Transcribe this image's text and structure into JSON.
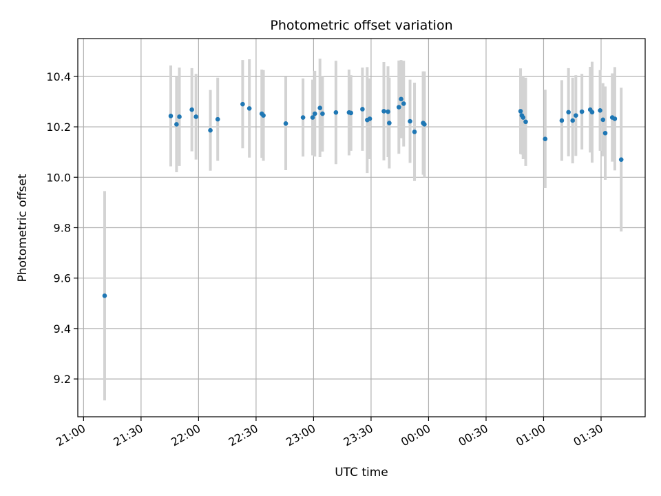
{
  "chart_data": {
    "type": "scatter",
    "title": "Photometric offset variation",
    "xlabel": "UTC time",
    "ylabel": "Photometric offset",
    "grid": true,
    "xlim": [
      "20:57",
      "01:53"
    ],
    "ylim": [
      9.05,
      10.55
    ],
    "xticks": [
      "21:00",
      "21:30",
      "22:00",
      "22:30",
      "23:00",
      "23:30",
      "00:00",
      "00:30",
      "01:00",
      "01:30"
    ],
    "yticks": [
      "9.2",
      "9.4",
      "9.6",
      "9.8",
      "10.0",
      "10.2",
      "10.4"
    ],
    "point_color": "#1f77b4",
    "errorbar_color": "#d3d3d3",
    "points": [
      {
        "t": "21:11:00",
        "y": 9.53,
        "err": 0.415
      },
      {
        "t": "21:45:30",
        "y": 10.243,
        "err": 0.2
      },
      {
        "t": "21:48:30",
        "y": 10.21,
        "err": 0.19
      },
      {
        "t": "21:50:00",
        "y": 10.24,
        "err": 0.195
      },
      {
        "t": "21:56:30",
        "y": 10.268,
        "err": 0.165
      },
      {
        "t": "21:58:40",
        "y": 10.24,
        "err": 0.17
      },
      {
        "t": "22:06:10",
        "y": 10.186,
        "err": 0.16
      },
      {
        "t": "22:10:00",
        "y": 10.23,
        "err": 0.165
      },
      {
        "t": "22:23:00",
        "y": 10.29,
        "err": 0.175
      },
      {
        "t": "22:26:30",
        "y": 10.273,
        "err": 0.195
      },
      {
        "t": "22:33:00",
        "y": 10.252,
        "err": 0.175
      },
      {
        "t": "22:33:50",
        "y": 10.245,
        "err": 0.18
      },
      {
        "t": "22:45:30",
        "y": 10.213,
        "err": 0.185
      },
      {
        "t": "22:54:30",
        "y": 10.237,
        "err": 0.155
      },
      {
        "t": "22:59:30",
        "y": 10.237,
        "err": 0.15
      },
      {
        "t": "23:00:40",
        "y": 10.252,
        "err": 0.17
      },
      {
        "t": "23:03:20",
        "y": 10.275,
        "err": 0.195
      },
      {
        "t": "23:04:40",
        "y": 10.252,
        "err": 0.15
      },
      {
        "t": "23:11:40",
        "y": 10.257,
        "err": 0.205
      },
      {
        "t": "23:18:30",
        "y": 10.257,
        "err": 0.17
      },
      {
        "t": "23:19:30",
        "y": 10.255,
        "err": 0.15
      },
      {
        "t": "23:25:30",
        "y": 10.27,
        "err": 0.165
      },
      {
        "t": "23:28:00",
        "y": 10.227,
        "err": 0.21
      },
      {
        "t": "23:29:20",
        "y": 10.232,
        "err": 0.16
      },
      {
        "t": "23:36:40",
        "y": 10.262,
        "err": 0.195
      },
      {
        "t": "23:38:50",
        "y": 10.26,
        "err": 0.18
      },
      {
        "t": "23:39:30",
        "y": 10.215,
        "err": 0.18
      },
      {
        "t": "23:44:30",
        "y": 10.278,
        "err": 0.185
      },
      {
        "t": "23:45:40",
        "y": 10.31,
        "err": 0.155
      },
      {
        "t": "23:47:00",
        "y": 10.292,
        "err": 0.17
      },
      {
        "t": "23:50:20",
        "y": 10.222,
        "err": 0.165
      },
      {
        "t": "23:52:40",
        "y": 10.18,
        "err": 0.195
      },
      {
        "t": "23:57:10",
        "y": 10.215,
        "err": 0.205
      },
      {
        "t": "23:57:50",
        "y": 10.21,
        "err": 0.21
      },
      {
        "t": "00:48:00",
        "y": 10.262,
        "err": 0.17
      },
      {
        "t": "00:48:40",
        "y": 10.245,
        "err": 0.155
      },
      {
        "t": "00:49:20",
        "y": 10.237,
        "err": 0.165
      },
      {
        "t": "00:50:40",
        "y": 10.22,
        "err": 0.175
      },
      {
        "t": "01:00:50",
        "y": 10.152,
        "err": 0.195
      },
      {
        "t": "01:09:30",
        "y": 10.225,
        "err": 0.16
      },
      {
        "t": "01:13:00",
        "y": 10.258,
        "err": 0.175
      },
      {
        "t": "01:15:10",
        "y": 10.225,
        "err": 0.17
      },
      {
        "t": "01:16:50",
        "y": 10.245,
        "err": 0.16
      },
      {
        "t": "01:20:00",
        "y": 10.26,
        "err": 0.15
      },
      {
        "t": "01:24:20",
        "y": 10.268,
        "err": 0.17
      },
      {
        "t": "01:25:20",
        "y": 10.258,
        "err": 0.2
      },
      {
        "t": "01:29:30",
        "y": 10.265,
        "err": 0.16
      },
      {
        "t": "01:31:00",
        "y": 10.228,
        "err": 0.145
      },
      {
        "t": "01:32:10",
        "y": 10.175,
        "err": 0.185
      },
      {
        "t": "01:35:50",
        "y": 10.237,
        "err": 0.175
      },
      {
        "t": "01:37:10",
        "y": 10.232,
        "err": 0.205
      },
      {
        "t": "01:40:30",
        "y": 10.07,
        "err": 0.285
      }
    ]
  }
}
